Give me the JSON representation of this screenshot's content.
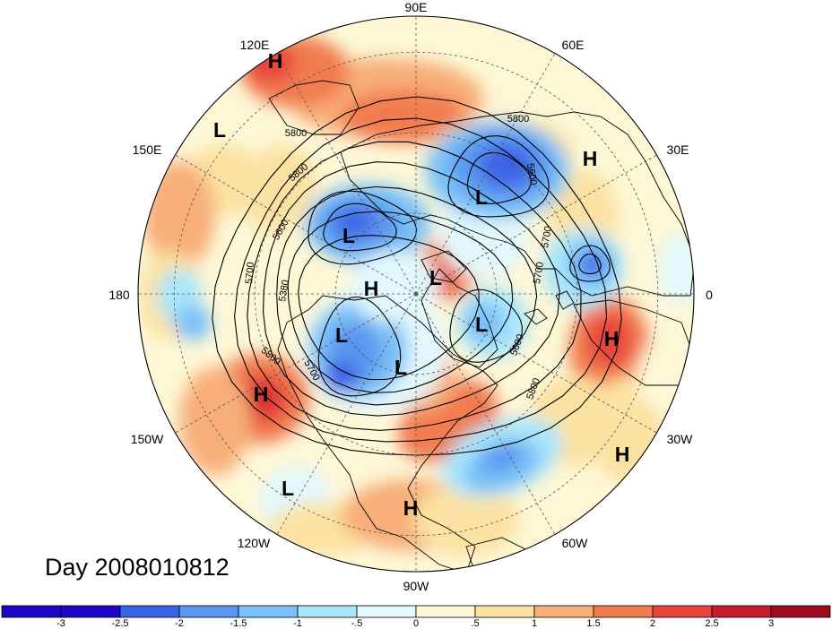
{
  "map": {
    "projection": "polar stereographic, north pole",
    "day_label": "Day 2008010812",
    "longitude_labels": [
      "90E",
      "60E",
      "30E",
      "0",
      "30W",
      "60W",
      "90W",
      "120W",
      "150W",
      "180",
      "150E",
      "120E"
    ],
    "contour_labels": [
      "5800",
      "5600",
      "5700",
      "5800",
      "5600",
      "5700",
      "5380",
      "5700",
      "5800",
      "5700",
      "5800",
      "5600",
      "5800"
    ],
    "pressure_centers": [
      {
        "type": "H",
        "lon": 117,
        "lat": 21
      },
      {
        "type": "L",
        "lon": 138,
        "lat": 10
      },
      {
        "type": "H",
        "lon": 32,
        "lat": 38
      },
      {
        "type": "L",
        "lon": 62,
        "lat": 55
      },
      {
        "type": "L",
        "lon": 118,
        "lat": 56
      },
      {
        "type": "L",
        "lon": 75,
        "lat": 80
      },
      {
        "type": "H",
        "lon": 165,
        "lat": 77
      },
      {
        "type": "L",
        "lon": 345,
        "lat": 76
      },
      {
        "type": "L",
        "lon": 220,
        "lat": 60
      },
      {
        "type": "L",
        "lon": 260,
        "lat": 70
      },
      {
        "type": "H",
        "lon": 350,
        "lat": 48
      },
      {
        "type": "H",
        "lon": 205,
        "lat": 30
      },
      {
        "type": "H",
        "lon": 325,
        "lat": 18
      },
      {
        "type": "L",
        "lon": 235,
        "lat": 13
      },
      {
        "type": "H",
        "lon": 270,
        "lat": 12
      }
    ],
    "colors": {
      "background": "#ffffff",
      "coast": "#000000",
      "contour": "#000000"
    }
  },
  "colorbar": {
    "ticks": [
      "-3",
      "-2.5",
      "-2",
      "-1.5",
      "-1",
      "-.5",
      "0",
      ".5",
      "1",
      "1.5",
      "2",
      "2.5",
      "3"
    ],
    "colors": [
      "#1c06c8",
      "#3c64e6",
      "#5a96f0",
      "#78c0f8",
      "#a8e6fc",
      "#e2f8fc",
      "#fdf7d6",
      "#fbe2a2",
      "#f8ae78",
      "#f27c50",
      "#e8443c",
      "#c81c2c",
      "#a00a1e"
    ]
  }
}
